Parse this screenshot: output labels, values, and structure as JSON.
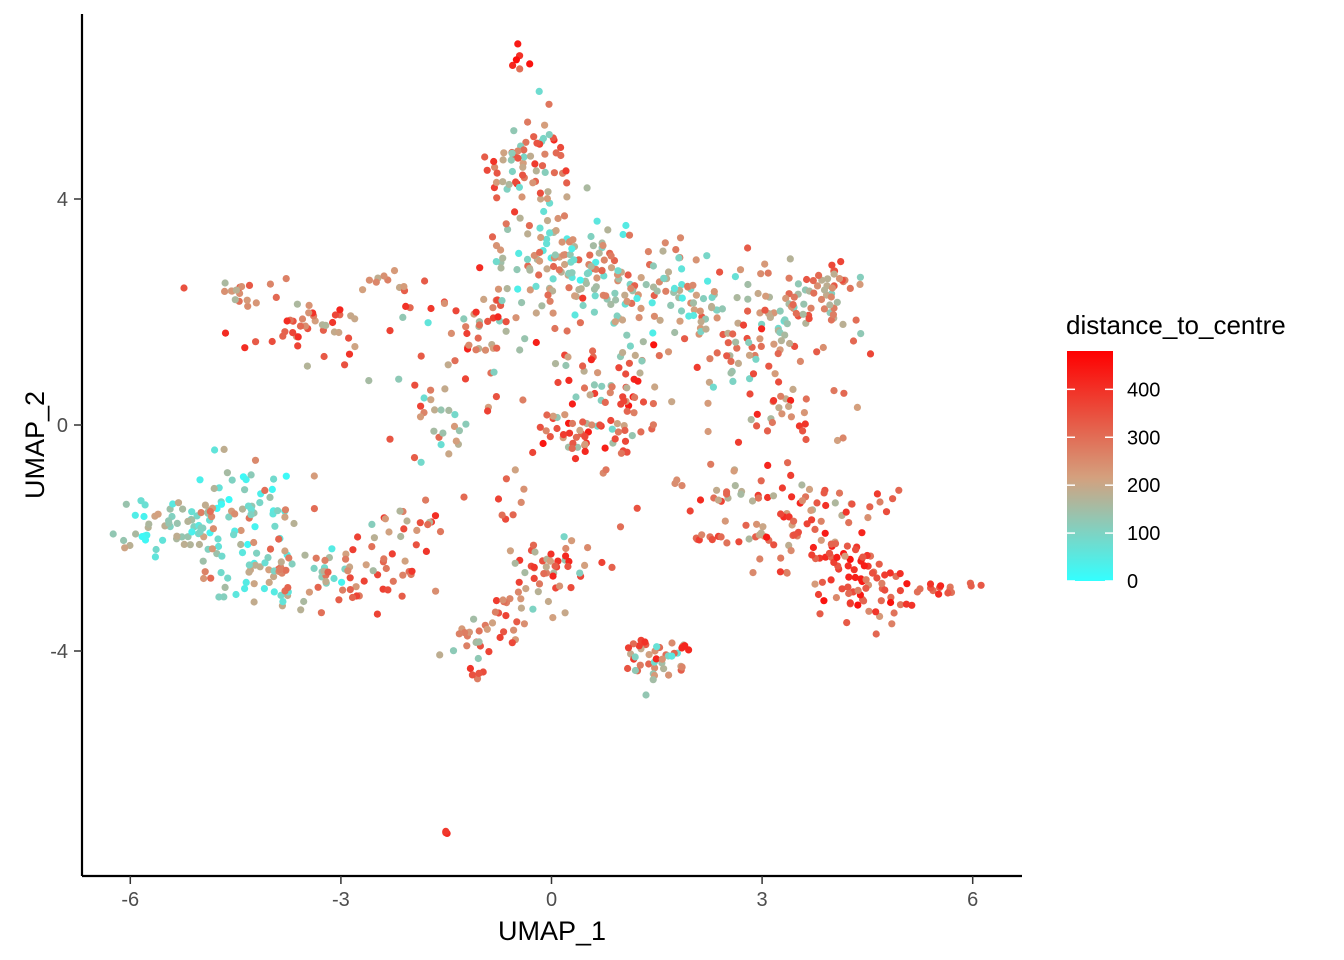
{
  "chart_data": {
    "type": "scatter",
    "xlabel": "UMAP_1",
    "ylabel": "UMAP_2",
    "xlim": [
      -6.7,
      6.7
    ],
    "ylim": [
      -7.8,
      7.3
    ],
    "x_ticks": [
      -6,
      -3,
      0,
      3,
      6
    ],
    "x_tick_labels": [
      "-6",
      "-3",
      "0",
      "3",
      "6"
    ],
    "y_ticks": [
      -4,
      0,
      4
    ],
    "y_tick_labels": [
      "-4",
      "0",
      "4"
    ],
    "grid": false,
    "color_scale": {
      "title": "distance_to_centre",
      "min": 0,
      "max": 480,
      "low_color": "#33FFFF",
      "mid_color": "#D4A07E",
      "high_color": "#FF0000",
      "breaks": [
        0,
        100,
        200,
        300,
        400
      ],
      "break_labels": [
        "0",
        "100",
        "200",
        "300",
        "400"
      ],
      "legend_position": "right"
    },
    "n_points": 1400,
    "clusters": [
      {
        "x": -0.45,
        "y": 6.5,
        "sx": 0.05,
        "sy": 0.15,
        "n": 6,
        "d": [
          230,
          470
        ]
      },
      {
        "x": -0.3,
        "y": 4.6,
        "sx": 0.3,
        "sy": 0.45,
        "n": 70,
        "d": [
          60,
          420
        ]
      },
      {
        "x": 0.2,
        "y": 3.0,
        "sx": 0.6,
        "sy": 0.5,
        "n": 110,
        "d": [
          20,
          320
        ]
      },
      {
        "x": 1.6,
        "y": 2.4,
        "sx": 0.7,
        "sy": 0.35,
        "n": 90,
        "d": [
          30,
          330
        ]
      },
      {
        "x": 2.8,
        "y": 1.6,
        "sx": 0.6,
        "sy": 0.4,
        "n": 80,
        "d": [
          80,
          350
        ]
      },
      {
        "x": 3.6,
        "y": 2.2,
        "sx": 0.5,
        "sy": 0.35,
        "n": 45,
        "d": [
          100,
          380
        ]
      },
      {
        "x": 4.0,
        "y": 2.7,
        "sx": 0.25,
        "sy": 0.1,
        "n": 12,
        "d": [
          150,
          420
        ]
      },
      {
        "x": 0.8,
        "y": 0.6,
        "sx": 0.45,
        "sy": 0.6,
        "n": 80,
        "d": [
          80,
          450
        ]
      },
      {
        "x": 0.5,
        "y": -0.2,
        "sx": 0.3,
        "sy": 0.25,
        "n": 35,
        "d": [
          200,
          450
        ]
      },
      {
        "x": 3.3,
        "y": 0.3,
        "sx": 0.4,
        "sy": 0.6,
        "n": 40,
        "d": [
          150,
          430
        ]
      },
      {
        "x": 3.2,
        "y": -1.4,
        "sx": 0.9,
        "sy": 0.35,
        "n": 80,
        "d": [
          150,
          420
        ]
      },
      {
        "x": 3.9,
        "y": -2.4,
        "sx": 0.5,
        "sy": 0.3,
        "n": 50,
        "d": [
          200,
          460
        ]
      },
      {
        "x": 4.6,
        "y": -2.9,
        "sx": 0.35,
        "sy": 0.35,
        "n": 45,
        "d": [
          220,
          460
        ]
      },
      {
        "x": 5.6,
        "y": -2.9,
        "sx": 0.35,
        "sy": 0.08,
        "n": 14,
        "d": [
          280,
          420
        ]
      },
      {
        "x": 2.2,
        "y": -2.0,
        "sx": 0.3,
        "sy": 0.05,
        "n": 10,
        "d": [
          250,
          380
        ]
      },
      {
        "x": -3.4,
        "y": 1.7,
        "sx": 0.45,
        "sy": 0.25,
        "n": 40,
        "d": [
          150,
          420
        ]
      },
      {
        "x": -4.4,
        "y": 2.4,
        "sx": 0.3,
        "sy": 0.15,
        "n": 18,
        "d": [
          150,
          380
        ]
      },
      {
        "x": -2.3,
        "y": 2.4,
        "sx": 0.3,
        "sy": 0.2,
        "n": 12,
        "d": [
          180,
          360
        ]
      },
      {
        "x": -5.4,
        "y": -1.8,
        "sx": 0.4,
        "sy": 0.25,
        "n": 60,
        "d": [
          0,
          220
        ]
      },
      {
        "x": -4.4,
        "y": -1.3,
        "sx": 0.45,
        "sy": 0.4,
        "n": 55,
        "d": [
          0,
          300
        ]
      },
      {
        "x": -3.8,
        "y": -2.6,
        "sx": 0.5,
        "sy": 0.35,
        "n": 75,
        "d": [
          20,
          330
        ]
      },
      {
        "x": -2.6,
        "y": -2.6,
        "sx": 0.4,
        "sy": 0.3,
        "n": 35,
        "d": [
          150,
          380
        ]
      },
      {
        "x": -1.6,
        "y": 0.3,
        "sx": 0.45,
        "sy": 0.8,
        "n": 45,
        "d": [
          50,
          400
        ]
      },
      {
        "x": -2.0,
        "y": -1.8,
        "sx": 0.3,
        "sy": 0.4,
        "n": 20,
        "d": [
          150,
          420
        ]
      },
      {
        "x": -0.9,
        "y": 1.6,
        "sx": 0.35,
        "sy": 0.45,
        "n": 40,
        "d": [
          80,
          430
        ]
      },
      {
        "x": -0.6,
        "y": -1.3,
        "sx": 0.2,
        "sy": 0.3,
        "n": 8,
        "d": [
          200,
          400
        ]
      },
      {
        "x": -0.6,
        "y": -3.3,
        "sx": 0.3,
        "sy": 0.3,
        "n": 22,
        "d": [
          150,
          420
        ]
      },
      {
        "x": -1.0,
        "y": -3.7,
        "sx": 0.2,
        "sy": 0.2,
        "n": 22,
        "d": [
          120,
          400
        ]
      },
      {
        "x": -1.05,
        "y": -4.4,
        "sx": 0.05,
        "sy": 0.12,
        "n": 5,
        "d": [
          250,
          400
        ]
      },
      {
        "x": 0.0,
        "y": -2.5,
        "sx": 0.3,
        "sy": 0.25,
        "n": 40,
        "d": [
          80,
          420
        ]
      },
      {
        "x": 1.5,
        "y": -4.2,
        "sx": 0.25,
        "sy": 0.2,
        "n": 35,
        "d": [
          50,
          420
        ]
      },
      {
        "x": 1.2,
        "y": -3.9,
        "sx": 0.1,
        "sy": 0.05,
        "n": 5,
        "d": [
          300,
          420
        ]
      },
      {
        "x": 1.9,
        "y": -3.9,
        "sx": 0.1,
        "sy": 0.05,
        "n": 4,
        "d": [
          280,
          420
        ]
      },
      {
        "x": -1.5,
        "y": -7.2,
        "sx": 0.02,
        "sy": 0.02,
        "n": 3,
        "d": [
          380,
          420
        ]
      }
    ]
  }
}
